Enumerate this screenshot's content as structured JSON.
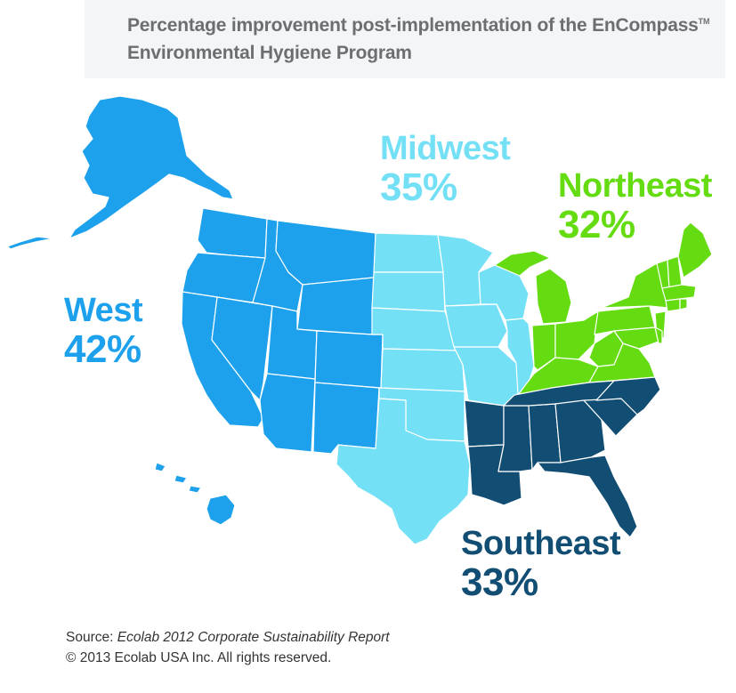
{
  "title": {
    "line1": "Percentage improvement post-implementation of the EnCompass",
    "trademark": "TM",
    "line2": "Environmental Hygiene Program"
  },
  "regions": {
    "west": {
      "name": "West",
      "value": "42%",
      "color": "#1ea1ec"
    },
    "midwest": {
      "name": "Midwest",
      "value": "35%",
      "color": "#74e0f6"
    },
    "northeast": {
      "name": "Northeast",
      "value": "32%",
      "color": "#65dc12"
    },
    "southeast": {
      "name": "Southeast",
      "value": "33%",
      "color": "#124d73"
    }
  },
  "footer": {
    "source_prefix": "Source: ",
    "source_title": "Ecolab 2012 Corporate Sustainability Report",
    "copyright": "© 2013 Ecolab USA Inc. All rights reserved."
  }
}
